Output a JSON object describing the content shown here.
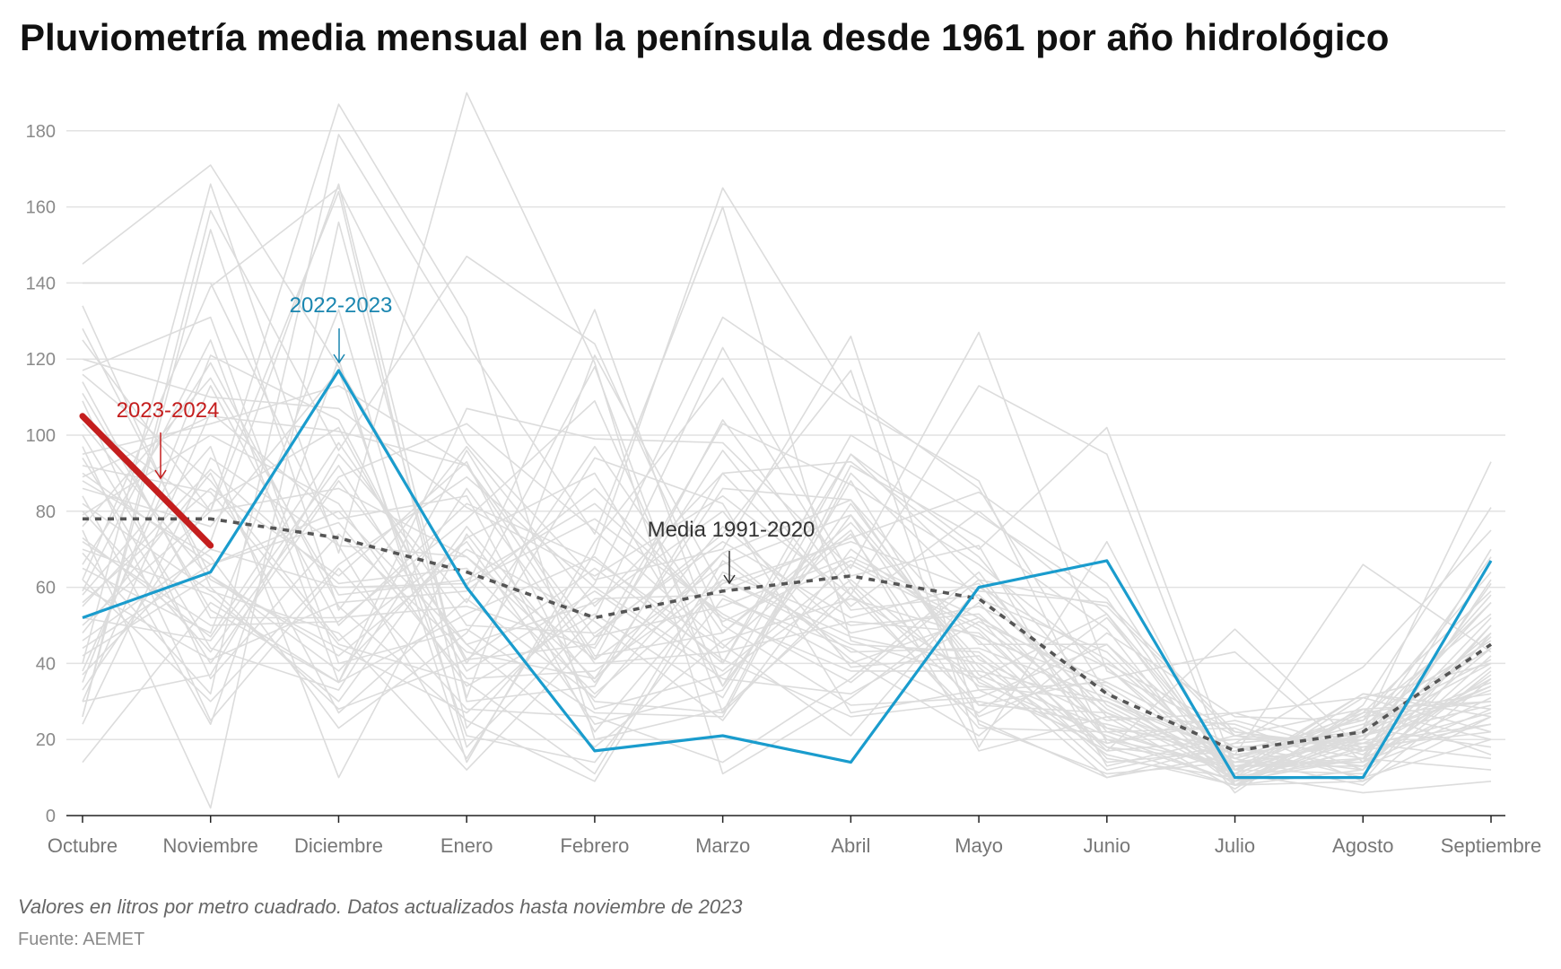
{
  "header": {
    "title": "Pluviometría media mensual en la península desde 1961 por año hidrológico"
  },
  "footer": {
    "note": "Valores en litros por metro cuadrado. Datos actualizados hasta noviembre de 2023",
    "source": "Fuente: AEMET"
  },
  "chart_data": {
    "type": "line",
    "categories": [
      "Octubre",
      "Noviembre",
      "Diciembre",
      "Enero",
      "Febrero",
      "Marzo",
      "Abril",
      "Mayo",
      "Junio",
      "Julio",
      "Agosto",
      "Septiembre"
    ],
    "ylim": [
      0,
      190
    ],
    "yticks": [
      0,
      20,
      40,
      60,
      80,
      100,
      120,
      140,
      160,
      180
    ],
    "grid": true,
    "xlabel": "",
    "ylabel": "",
    "colors": {
      "background_years": "#dcdcdc",
      "highlight_2022": "#1a9ccd",
      "highlight_2023": "#c41e1e",
      "average": "#555555",
      "label_2022": "#1a86b0",
      "label_2023": "#c41e1e",
      "label_average": "#333333",
      "grid": "#e2e2e2",
      "tick": "#8a8a8a"
    },
    "highlight_series": [
      {
        "name": "2022-2023",
        "values": [
          52,
          64,
          117,
          60,
          17,
          21,
          14,
          60,
          67,
          10,
          10,
          67
        ],
        "annotation_month": "Diciembre"
      },
      {
        "name": "2023-2024",
        "values": [
          105,
          71
        ],
        "annotation_month": "Octubre"
      },
      {
        "name": "Media 1991-2020",
        "values": [
          78,
          78,
          73,
          64,
          52,
          59,
          63,
          57,
          32,
          17,
          22,
          45
        ],
        "style": "dashed",
        "annotation_month": "Marzo"
      }
    ],
    "background_series": [
      [
        145,
        171,
        118,
        60,
        133,
        40,
        95,
        62,
        55,
        21,
        15,
        70
      ],
      [
        104,
        80,
        187,
        131,
        20,
        28,
        58,
        113,
        95,
        8,
        22,
        40
      ],
      [
        40,
        166,
        69,
        190,
        119,
        11,
        31,
        56,
        20,
        13,
        14,
        37
      ],
      [
        69,
        32,
        179,
        124,
        74,
        160,
        46,
        36,
        53,
        8,
        9,
        26
      ],
      [
        26,
        159,
        96,
        147,
        124,
        50,
        29,
        31,
        45,
        10,
        23,
        93
      ],
      [
        140,
        140,
        71,
        15,
        69,
        165,
        110,
        86,
        32,
        9,
        20,
        56
      ],
      [
        62,
        139,
        165,
        98,
        62,
        70,
        126,
        24,
        11,
        14,
        19,
        34
      ],
      [
        125,
        80,
        164,
        23,
        61,
        131,
        108,
        88,
        19,
        27,
        31,
        40
      ],
      [
        14,
        56,
        35,
        107,
        99,
        98,
        65,
        127,
        38,
        21,
        28,
        30
      ],
      [
        128,
        63,
        38,
        73,
        90,
        34,
        95,
        70,
        102,
        12,
        28,
        20
      ],
      [
        89,
        105,
        101,
        92,
        47,
        74,
        117,
        18,
        72,
        8,
        12,
        62
      ],
      [
        30,
        37,
        95,
        56,
        118,
        27,
        92,
        73,
        49,
        6,
        29,
        81
      ],
      [
        35,
        121,
        104,
        40,
        94,
        82,
        27,
        33,
        35,
        18,
        20,
        48
      ],
      [
        75,
        2,
        156,
        31,
        121,
        59,
        73,
        85,
        61,
        9,
        23,
        44
      ],
      [
        120,
        110,
        107,
        81,
        63,
        84,
        58,
        25,
        10,
        16,
        66,
        43
      ],
      [
        95,
        103,
        113,
        92,
        41,
        104,
        58,
        36,
        17,
        49,
        17,
        52
      ],
      [
        65,
        48,
        133,
        18,
        52,
        123,
        63,
        71,
        13,
        21,
        19,
        15
      ],
      [
        26,
        154,
        54,
        97,
        55,
        90,
        93,
        68,
        29,
        12,
        21,
        68
      ],
      [
        84,
        24,
        120,
        14,
        72,
        115,
        61,
        29,
        36,
        43,
        14,
        28
      ],
      [
        59,
        125,
        35,
        53,
        68,
        40,
        100,
        79,
        57,
        10,
        17,
        24
      ],
      [
        37,
        72,
        166,
        30,
        34,
        90,
        55,
        80,
        53,
        13,
        15,
        50
      ],
      [
        50,
        80,
        86,
        68,
        36,
        69,
        83,
        45,
        45,
        15,
        27,
        32
      ],
      [
        134,
        60,
        28,
        41,
        45,
        103,
        87,
        66,
        39,
        12,
        32,
        28
      ],
      [
        111,
        54,
        35,
        96,
        42,
        48,
        77,
        41,
        25,
        27,
        17,
        36
      ],
      [
        66,
        119,
        55,
        25,
        9,
        64,
        50,
        53,
        23,
        11,
        6,
        9
      ],
      [
        82,
        59,
        48,
        12,
        47,
        55,
        68,
        52,
        33,
        8,
        27,
        59
      ],
      [
        44,
        66,
        80,
        45,
        56,
        80,
        39,
        42,
        12,
        19,
        39,
        75
      ],
      [
        100,
        44,
        33,
        86,
        40,
        43,
        51,
        48,
        18,
        14,
        26,
        53
      ],
      [
        55,
        91,
        61,
        65,
        32,
        61,
        72,
        59,
        56,
        22,
        18,
        22
      ],
      [
        92,
        85,
        45,
        35,
        11,
        67,
        43,
        44,
        31,
        16,
        21,
        34
      ],
      [
        72,
        50,
        51,
        78,
        109,
        34,
        79,
        29,
        27,
        10,
        15,
        31
      ],
      [
        117,
        131,
        40,
        49,
        27,
        26,
        90,
        57,
        43,
        11,
        32,
        26
      ],
      [
        48,
        90,
        27,
        57,
        31,
        69,
        41,
        21,
        48,
        26,
        25,
        64
      ],
      [
        80,
        43,
        89,
        103,
        75,
        45,
        21,
        60,
        41,
        13,
        13,
        39
      ],
      [
        58,
        97,
        10,
        74,
        30,
        27,
        60,
        23,
        22,
        23,
        9,
        48
      ],
      [
        97,
        25,
        65,
        28,
        26,
        14,
        36,
        64,
        20,
        9,
        23,
        18
      ],
      [
        30,
        106,
        78,
        84,
        22,
        62,
        47,
        40,
        16,
        8,
        18,
        27
      ],
      [
        88,
        68,
        23,
        48,
        97,
        48,
        75,
        17,
        26,
        24,
        12,
        42
      ],
      [
        52,
        46,
        92,
        38,
        59,
        36,
        32,
        51,
        35,
        18,
        10,
        20
      ],
      [
        76,
        115,
        58,
        62,
        82,
        52,
        38,
        38,
        30,
        13,
        20,
        58
      ],
      [
        109,
        36,
        74,
        43,
        36,
        86,
        83,
        35,
        21,
        9,
        15,
        12
      ],
      [
        42,
        63,
        42,
        70,
        51,
        25,
        70,
        46,
        14,
        17,
        25,
        46
      ],
      [
        86,
        76,
        117,
        21,
        14,
        57,
        44,
        27,
        52,
        12,
        11,
        38
      ],
      [
        62,
        30,
        66,
        89,
        60,
        38,
        66,
        49,
        17,
        20,
        21,
        29
      ],
      [
        114,
        52,
        52,
        55,
        44,
        96,
        54,
        58,
        28,
        11,
        23,
        56
      ],
      [
        33,
        82,
        102,
        41,
        65,
        41,
        26,
        30,
        24,
        15,
        8,
        36
      ],
      [
        70,
        58,
        30,
        76,
        35,
        76,
        48,
        55,
        39,
        9,
        19,
        24
      ],
      [
        79,
        100,
        82,
        34,
        53,
        31,
        88,
        33,
        19,
        25,
        16,
        44
      ],
      [
        46,
        70,
        60,
        61,
        78,
        53,
        35,
        62,
        26,
        7,
        28,
        16
      ],
      [
        94,
        40,
        88,
        45,
        18,
        46,
        57,
        47,
        34,
        14,
        14,
        61
      ],
      [
        24,
        94,
        71,
        68,
        41,
        66,
        79,
        39,
        10,
        19,
        22,
        35
      ],
      [
        103,
        62,
        44,
        27,
        57,
        58,
        40,
        52,
        15,
        10,
        31,
        22
      ],
      [
        56,
        86,
        63,
        93,
        28,
        37,
        62,
        34,
        30,
        16,
        12,
        50
      ],
      [
        73,
        47,
        98,
        50,
        48,
        72,
        52,
        61,
        22,
        12,
        26,
        30
      ],
      [
        38,
        113,
        50,
        82,
        67,
        44,
        74,
        26,
        40,
        22,
        17,
        47
      ],
      [
        90,
        66,
        77,
        36,
        38,
        62,
        45,
        43,
        18,
        8,
        21,
        33
      ],
      [
        60,
        41,
        56,
        59,
        86,
        51,
        67,
        50,
        27,
        15,
        24,
        41
      ],
      [
        116,
        88,
        46,
        72,
        24,
        33,
        82,
        37,
        23,
        18,
        13,
        26
      ]
    ]
  }
}
